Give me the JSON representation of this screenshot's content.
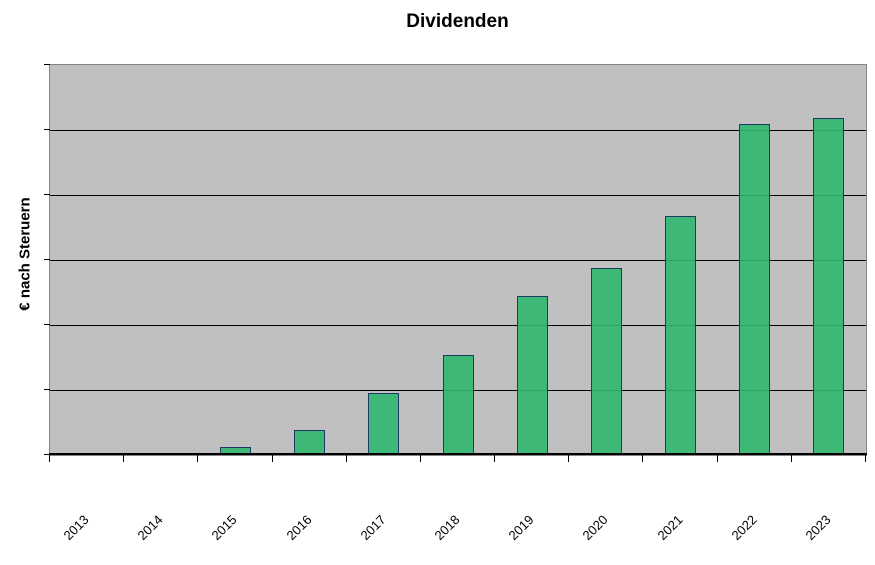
{
  "chart_data": {
    "type": "bar",
    "title": "Dividenden",
    "ylabel": "€ nach Steruern",
    "xlabel": "",
    "categories": [
      "2013",
      "2014",
      "2015",
      "2016",
      "2017",
      "2018",
      "2019",
      "2020",
      "2021",
      "2022",
      "2023"
    ],
    "values": [
      0,
      0.03,
      0.12,
      0.38,
      0.95,
      1.54,
      2.45,
      2.88,
      3.67,
      5.1,
      5.19
    ],
    "values_note": "y-axis has no numeric tick labels; values estimated in units of one horizontal gridline interval",
    "ylim": [
      0,
      6
    ],
    "grid": "horizontal, 5 interior gridlines, one every unit",
    "legend": "none",
    "x_tick_label_rotation_deg": -45,
    "colors": {
      "bar_fill": "#46BA7B",
      "bar_border": "#1E3A64",
      "plot_background": "#C0C0C0",
      "gridline": "#000000",
      "axis": "#000000",
      "plot_border": "#848484",
      "page_background": "#FFFFFF"
    }
  }
}
